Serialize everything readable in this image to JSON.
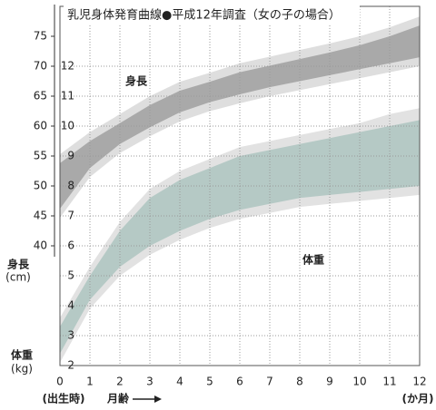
{
  "chart_data": {
    "type": "band",
    "title": "乳児身体発育曲線●平成12年調査（女の子の場合）",
    "x": [
      0,
      1,
      2,
      3,
      4,
      5,
      6,
      7,
      8,
      9,
      10,
      11,
      12
    ],
    "xlim": [
      0,
      12
    ],
    "xticks": [
      0,
      1,
      2,
      3,
      4,
      5,
      6,
      7,
      8,
      9,
      10,
      11,
      12
    ],
    "x_label_birth": "(出生時)",
    "x_label": "月齢",
    "x_unit": "(か月)",
    "grid": true,
    "y_label": "身長",
    "y_unit": "(cm)",
    "ylim": [
      20,
      80
    ],
    "yticks": [
      40,
      45,
      50,
      55,
      60,
      65,
      70,
      75
    ],
    "y2_label": "体重",
    "y2_unit": "(kg)",
    "y2lim": [
      2,
      14
    ],
    "y2ticks": [
      2,
      3,
      4,
      5,
      6,
      7,
      8,
      9,
      10,
      11,
      12
    ],
    "series": [
      {
        "name": "身長",
        "axis": "y",
        "outer_color": "#dedede",
        "inner_color": "#a9a9a9",
        "p3": [
          44.7,
          51.5,
          55.5,
          58.3,
          60.8,
          62.5,
          63.8,
          65,
          66,
          67,
          68,
          69,
          70
        ],
        "p10": [
          46.2,
          53,
          57,
          59.8,
          62.3,
          64,
          65.3,
          66.5,
          67.5,
          68.5,
          69.5,
          70.5,
          71.5
        ],
        "p90": [
          53.8,
          57.5,
          60.5,
          63.5,
          65.9,
          67.4,
          69,
          70.1,
          71.2,
          72.3,
          73.5,
          75,
          76.8
        ],
        "p97": [
          55.3,
          59,
          62,
          65,
          67.4,
          68.9,
          70.5,
          71.6,
          72.7,
          73.8,
          75,
          76.5,
          78.3
        ]
      },
      {
        "name": "体重",
        "axis": "y2",
        "outer_color": "#e2e2e2",
        "inner_color": "#b5c9c5",
        "p3": [
          2.1,
          3.9,
          5,
          5.7,
          6.2,
          6.6,
          6.9,
          7.1,
          7.3,
          7.4,
          7.5,
          7.6,
          7.7
        ],
        "p10": [
          2.4,
          4.2,
          5.3,
          6,
          6.5,
          6.9,
          7.2,
          7.4,
          7.6,
          7.7,
          7.8,
          7.9,
          8
        ],
        "p90": [
          3.3,
          5,
          6.5,
          7.6,
          8.2,
          8.6,
          9,
          9.2,
          9.4,
          9.6,
          9.8,
          10,
          10.2
        ],
        "p97": [
          3.6,
          5.3,
          6.8,
          7.9,
          8.5,
          8.9,
          9.3,
          9.5,
          9.7,
          9.9,
          10.1,
          10.4,
          10.6
        ]
      }
    ]
  }
}
